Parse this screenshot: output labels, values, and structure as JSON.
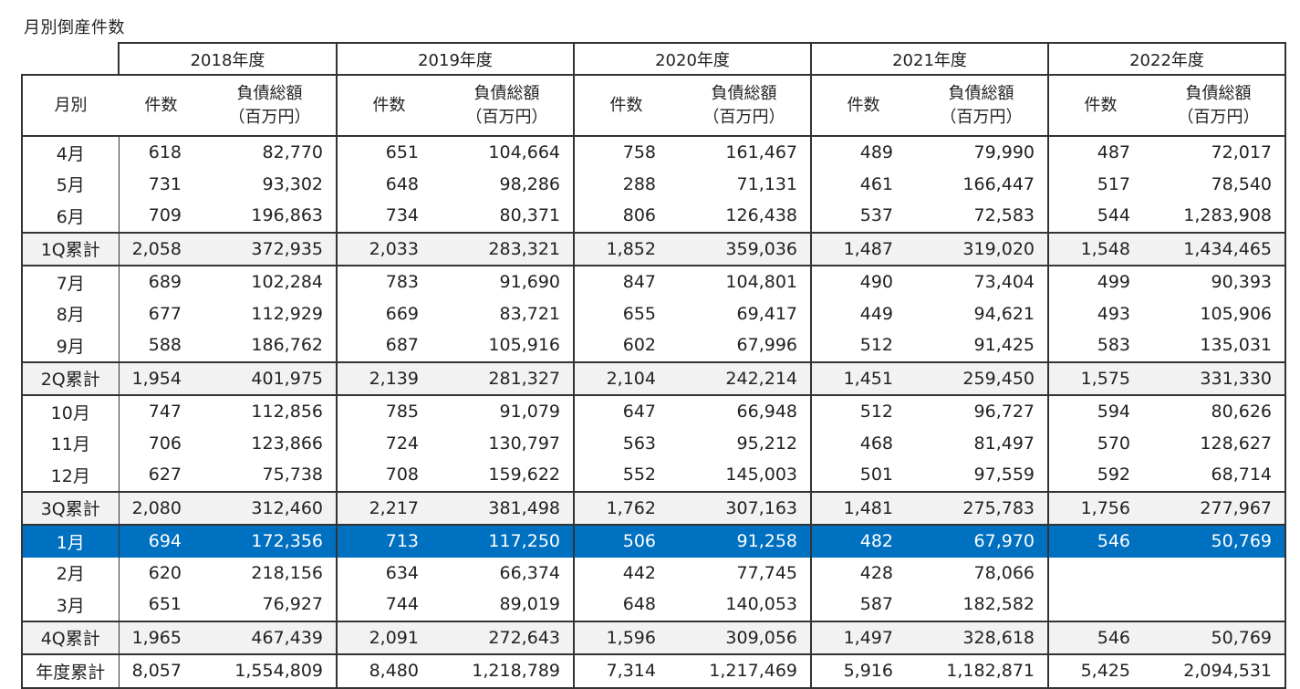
{
  "title": "月別倒産件数",
  "chart_data": {
    "type": "table",
    "title": "月別倒産件数",
    "row_header": "月別",
    "sub_headers": {
      "count": "件数",
      "amount_line1": "負債総額",
      "amount_line2": "（百万円）"
    },
    "years": [
      "2018年度",
      "2019年度",
      "2020年度",
      "2021年度",
      "2022年度"
    ],
    "rows": [
      {
        "label": "4月",
        "kind": "month",
        "cells": [
          [
            "618",
            "82,770"
          ],
          [
            "651",
            "104,664"
          ],
          [
            "758",
            "161,467"
          ],
          [
            "489",
            "79,990"
          ],
          [
            "487",
            "72,017"
          ]
        ]
      },
      {
        "label": "5月",
        "kind": "month",
        "cells": [
          [
            "731",
            "93,302"
          ],
          [
            "648",
            "98,286"
          ],
          [
            "288",
            "71,131"
          ],
          [
            "461",
            "166,447"
          ],
          [
            "517",
            "78,540"
          ]
        ]
      },
      {
        "label": "6月",
        "kind": "month",
        "cells": [
          [
            "709",
            "196,863"
          ],
          [
            "734",
            "80,371"
          ],
          [
            "806",
            "126,438"
          ],
          [
            "537",
            "72,583"
          ],
          [
            "544",
            "1,283,908"
          ]
        ]
      },
      {
        "label": "1Q累計",
        "kind": "sum",
        "cells": [
          [
            "2,058",
            "372,935"
          ],
          [
            "2,033",
            "283,321"
          ],
          [
            "1,852",
            "359,036"
          ],
          [
            "1,487",
            "319,020"
          ],
          [
            "1,548",
            "1,434,465"
          ]
        ]
      },
      {
        "label": "7月",
        "kind": "month",
        "cells": [
          [
            "689",
            "102,284"
          ],
          [
            "783",
            "91,690"
          ],
          [
            "847",
            "104,801"
          ],
          [
            "490",
            "73,404"
          ],
          [
            "499",
            "90,393"
          ]
        ]
      },
      {
        "label": "8月",
        "kind": "month",
        "cells": [
          [
            "677",
            "112,929"
          ],
          [
            "669",
            "83,721"
          ],
          [
            "655",
            "69,417"
          ],
          [
            "449",
            "94,621"
          ],
          [
            "493",
            "105,906"
          ]
        ]
      },
      {
        "label": "9月",
        "kind": "month",
        "cells": [
          [
            "588",
            "186,762"
          ],
          [
            "687",
            "105,916"
          ],
          [
            "602",
            "67,996"
          ],
          [
            "512",
            "91,425"
          ],
          [
            "583",
            "135,031"
          ]
        ]
      },
      {
        "label": "2Q累計",
        "kind": "sum",
        "cells": [
          [
            "1,954",
            "401,975"
          ],
          [
            "2,139",
            "281,327"
          ],
          [
            "2,104",
            "242,214"
          ],
          [
            "1,451",
            "259,450"
          ],
          [
            "1,575",
            "331,330"
          ]
        ]
      },
      {
        "label": "10月",
        "kind": "month",
        "cells": [
          [
            "747",
            "112,856"
          ],
          [
            "785",
            "91,079"
          ],
          [
            "647",
            "66,948"
          ],
          [
            "512",
            "96,727"
          ],
          [
            "594",
            "80,626"
          ]
        ]
      },
      {
        "label": "11月",
        "kind": "month",
        "cells": [
          [
            "706",
            "123,866"
          ],
          [
            "724",
            "130,797"
          ],
          [
            "563",
            "95,212"
          ],
          [
            "468",
            "81,497"
          ],
          [
            "570",
            "128,627"
          ]
        ]
      },
      {
        "label": "12月",
        "kind": "month",
        "cells": [
          [
            "627",
            "75,738"
          ],
          [
            "708",
            "159,622"
          ],
          [
            "552",
            "145,003"
          ],
          [
            "501",
            "97,559"
          ],
          [
            "592",
            "68,714"
          ]
        ]
      },
      {
        "label": "3Q累計",
        "kind": "sum",
        "cells": [
          [
            "2,080",
            "312,460"
          ],
          [
            "2,217",
            "381,498"
          ],
          [
            "1,762",
            "307,163"
          ],
          [
            "1,481",
            "275,783"
          ],
          [
            "1,756",
            "277,967"
          ]
        ]
      },
      {
        "label": "1月",
        "kind": "highlight",
        "cells": [
          [
            "694",
            "172,356"
          ],
          [
            "713",
            "117,250"
          ],
          [
            "506",
            "91,258"
          ],
          [
            "482",
            "67,970"
          ],
          [
            "546",
            "50,769"
          ]
        ]
      },
      {
        "label": "2月",
        "kind": "month",
        "cells": [
          [
            "620",
            "218,156"
          ],
          [
            "634",
            "66,374"
          ],
          [
            "442",
            "77,745"
          ],
          [
            "428",
            "78,066"
          ],
          [
            "",
            ""
          ]
        ]
      },
      {
        "label": "3月",
        "kind": "month",
        "cells": [
          [
            "651",
            "76,927"
          ],
          [
            "744",
            "89,019"
          ],
          [
            "648",
            "140,053"
          ],
          [
            "587",
            "182,582"
          ],
          [
            "",
            ""
          ]
        ]
      },
      {
        "label": "4Q累計",
        "kind": "sum",
        "cells": [
          [
            "1,965",
            "467,439"
          ],
          [
            "2,091",
            "272,643"
          ],
          [
            "1,596",
            "309,056"
          ],
          [
            "1,497",
            "328,618"
          ],
          [
            "546",
            "50,769"
          ]
        ]
      },
      {
        "label": "年度累計",
        "kind": "total",
        "cells": [
          [
            "8,057",
            "1,554,809"
          ],
          [
            "8,480",
            "1,218,789"
          ],
          [
            "7,314",
            "1,217,469"
          ],
          [
            "5,916",
            "1,182,871"
          ],
          [
            "5,425",
            "2,094,531"
          ]
        ]
      }
    ],
    "colors": {
      "highlight": "#0070c0",
      "summary_row": "#f2f2f2"
    }
  }
}
